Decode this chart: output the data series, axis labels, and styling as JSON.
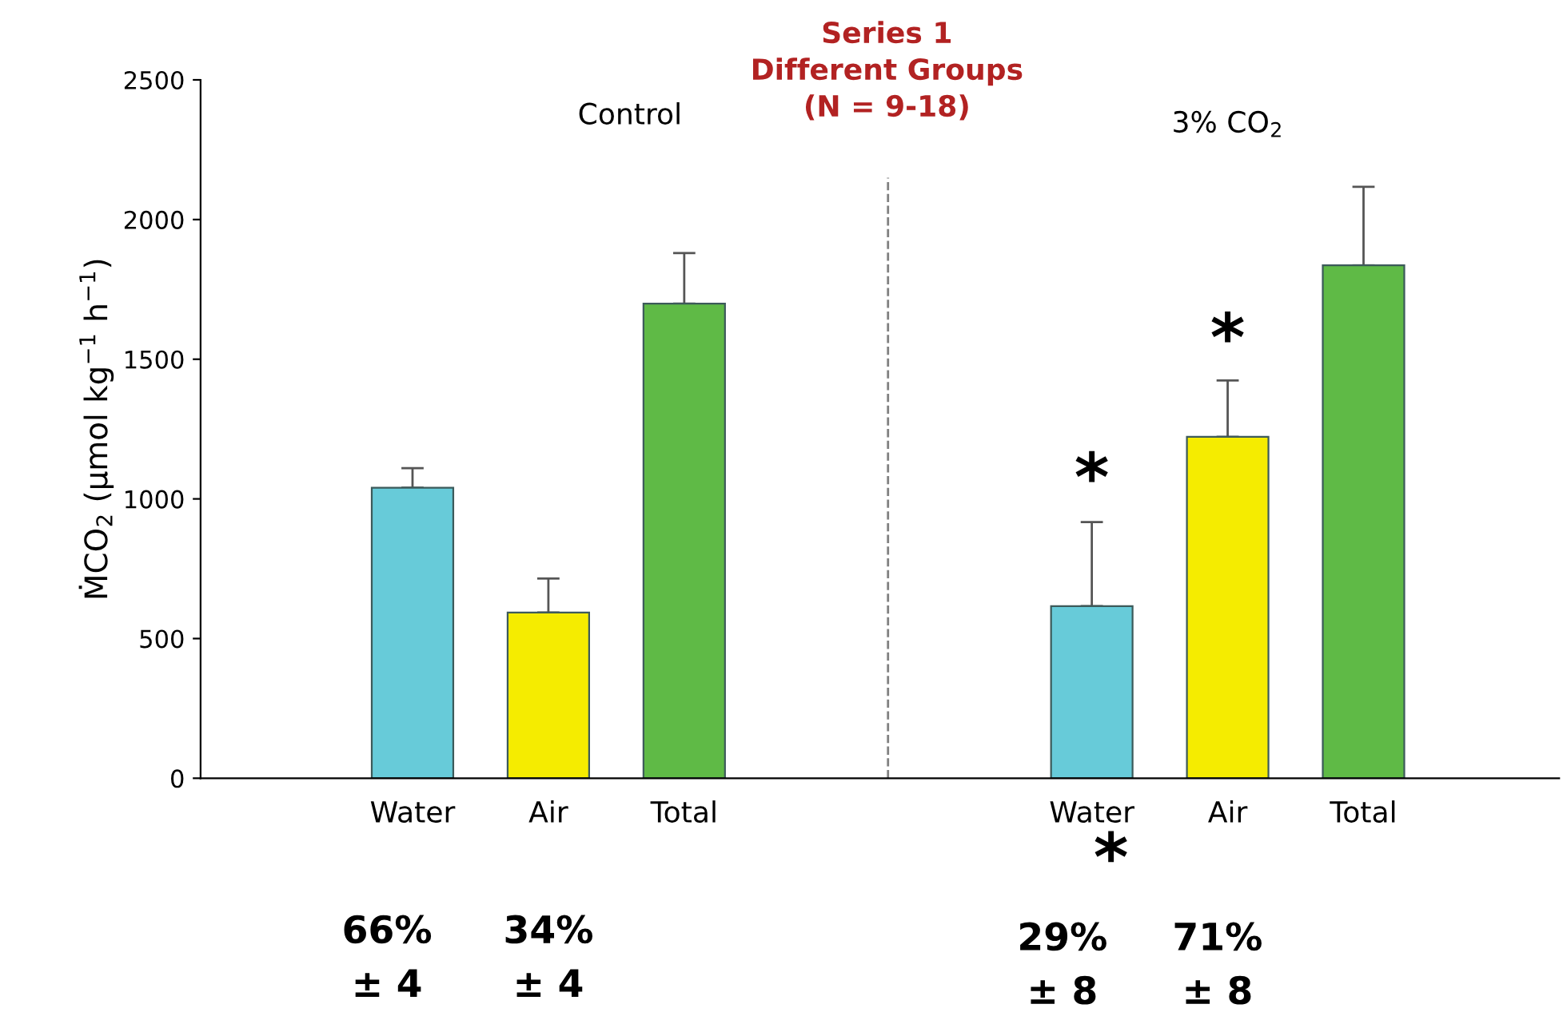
{
  "chart_data": {
    "type": "bar",
    "title": "Series 1\nDifferent Groups\n(N = 9-18)",
    "ylabel": "ṀCO$_{2}$ (µmol kg$^{−1}$ h$^{−1}$)",
    "categories": [
      null,
      "Water",
      "Air",
      "Total",
      null,
      null,
      "Water",
      "Air",
      "Total",
      null
    ],
    "values": [
      null,
      1040,
      593,
      1699,
      null,
      null,
      616,
      1222,
      1836,
      null
    ],
    "colors": [
      "#67cbd9",
      "#67cbd9",
      "#f5ec00",
      "#5fba46",
      "#67cbd9",
      "#67cbd9",
      "#67cbd9",
      "#f5ec00",
      "#5fba46",
      "#67cbd9"
    ],
    "errors": [
      null,
      [
        1040,
        1110
      ],
      [
        593,
        715
      ],
      [
        1699,
        1880
      ],
      null,
      null,
      [
        616,
        917
      ],
      [
        1222,
        1424
      ],
      [
        1836,
        2117
      ],
      null
    ],
    "ylim": [
      0,
      2500
    ],
    "yticks": [
      0,
      500,
      1000,
      1500,
      2000,
      2500
    ],
    "grid": false,
    "annotations": [
      "Control",
      "3% CO$_{2}$",
      "*",
      "*",
      "*",
      "66%\n± 4",
      "34%\n± 4",
      "29%\n± 8",
      "71%\n± 8"
    ]
  }
}
